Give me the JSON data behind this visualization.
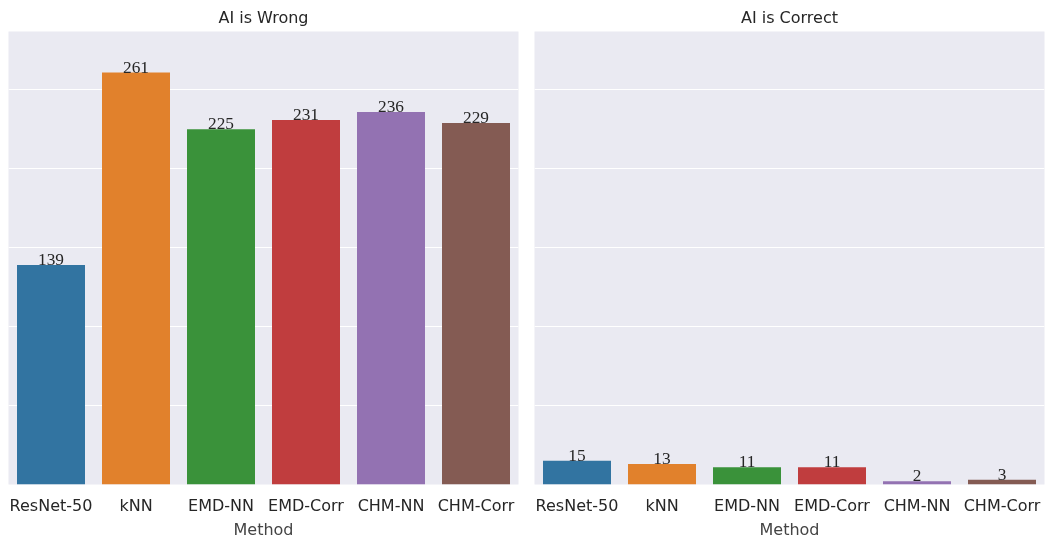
{
  "chart_data": [
    {
      "type": "bar",
      "title": "AI is Wrong",
      "xlabel": "Method",
      "categories": [
        "ResNet-50",
        "kNN",
        "EMD-NN",
        "EMD-Corr",
        "CHM-NN",
        "CHM-Corr"
      ],
      "values": [
        139,
        261,
        225,
        231,
        236,
        229
      ],
      "colors": [
        "#3274a1",
        "#e1812c",
        "#3a923a",
        "#c03d3e",
        "#9372b2",
        "#845b53"
      ],
      "ylim": [
        0,
        287
      ],
      "yticks": [
        {
          "value": 0,
          "label": null
        },
        {
          "value": 50,
          "label": null
        },
        {
          "value": 100,
          "label": null
        },
        {
          "value": 150,
          "label": null
        },
        {
          "value": 200,
          "label": null
        },
        {
          "value": 250,
          "label": null
        }
      ],
      "grid": "y",
      "tick_labels": "x",
      "data_labels": true
    },
    {
      "type": "bar",
      "title": "AI is Correct",
      "xlabel": "Method",
      "categories": [
        "ResNet-50",
        "kNN",
        "EMD-NN",
        "EMD-Corr",
        "CHM-NN",
        "CHM-Corr"
      ],
      "values": [
        15,
        13,
        11,
        11,
        2,
        3
      ],
      "colors": [
        "#3274a1",
        "#e1812c",
        "#3a923a",
        "#c03d3e",
        "#9372b2",
        "#845b53"
      ],
      "ylim": [
        0,
        287
      ],
      "yticks": [
        {
          "value": 0,
          "label": null
        },
        {
          "value": 50,
          "label": null
        },
        {
          "value": 100,
          "label": null
        },
        {
          "value": 150,
          "label": null
        },
        {
          "value": 200,
          "label": null
        },
        {
          "value": 250,
          "label": null
        }
      ],
      "grid": "y",
      "tick_labels": "x",
      "data_labels": true
    }
  ]
}
